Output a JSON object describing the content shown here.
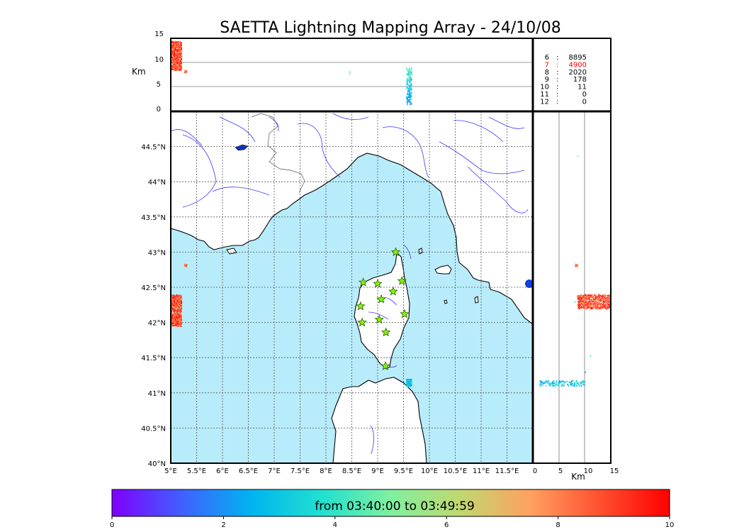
{
  "title": "SAETTA Lightning Mapping Array - 24/10/08",
  "colors": {
    "sea": "#b8ecfa",
    "land": "#ffffff",
    "river": "#3a3aff",
    "border": "#555555",
    "grid": "#555555",
    "station_fill": "#7cfc00",
    "station_stroke": "#2e5a00"
  },
  "top_panel": {
    "ylabel": "Km",
    "yticks": [
      "0",
      "5",
      "10",
      "15"
    ]
  },
  "right_panel": {
    "xlabel": "Km",
    "xticks": [
      "0",
      "5",
      "10",
      "15"
    ]
  },
  "stats": [
    {
      "label": "6",
      "value": "8895",
      "highlight": false
    },
    {
      "label": "7",
      "value": "4900",
      "highlight": true
    },
    {
      "label": "8",
      "value": "2020",
      "highlight": false
    },
    {
      "label": "9",
      "value": "178",
      "highlight": false
    },
    {
      "label": "10",
      "value": "11",
      "highlight": false
    },
    {
      "label": "11",
      "value": "0",
      "highlight": false
    },
    {
      "label": "12",
      "value": "0",
      "highlight": false
    }
  ],
  "map": {
    "lon_ticks": [
      "5°E",
      "5.5°E",
      "6°E",
      "6.5°E",
      "7°E",
      "7.5°E",
      "8°E",
      "8.5°E",
      "9°E",
      "9.5°E",
      "10°E",
      "10.5°E",
      "11°E",
      "11.5°E"
    ],
    "lat_ticks": [
      "40°N",
      "40.5°N",
      "41°N",
      "41.5°N",
      "42°N",
      "42.5°N",
      "43°N",
      "43.5°N",
      "44°N",
      "44.5°N"
    ]
  },
  "colorbar": {
    "label": "from 03:40:00 to 03:49:59",
    "ticks": [
      "0",
      "2",
      "4",
      "6",
      "8",
      "10"
    ],
    "gradient": [
      "#7f00ff",
      "#4060ff",
      "#00b4f0",
      "#20e0d0",
      "#80f0a0",
      "#c0d870",
      "#ffa060",
      "#ff5030",
      "#ff0000"
    ]
  },
  "chart_data": {
    "type": "scatter",
    "title": "SAETTA Lightning Mapping Array - 24/10/08",
    "xlim": [
      5,
      12
    ],
    "ylim": [
      40,
      45
    ],
    "altitude_range_km": [
      0,
      15
    ],
    "color_range": [
      0,
      10
    ],
    "stations": [
      [
        9.35,
        43.0
      ],
      [
        8.72,
        42.57
      ],
      [
        9.0,
        42.55
      ],
      [
        9.47,
        42.59
      ],
      [
        9.3,
        42.44
      ],
      [
        9.07,
        42.33
      ],
      [
        8.67,
        42.23
      ],
      [
        9.52,
        42.12
      ],
      [
        9.03,
        42.04
      ],
      [
        8.7,
        42.0
      ],
      [
        9.16,
        41.86
      ],
      [
        9.15,
        41.38
      ]
    ],
    "clusters": [
      {
        "lon": [
          5.0,
          5.2
        ],
        "lat": [
          41.95,
          42.4
        ],
        "alt_km": [
          8.5,
          14.5
        ],
        "time": [
          7.5,
          10
        ]
      },
      {
        "lon": [
          5.25,
          5.3
        ],
        "lat": [
          42.8,
          42.85
        ],
        "alt_km": [
          8,
          8.5
        ],
        "time": [
          8,
          9
        ]
      },
      {
        "lon": [
          9.55,
          9.65
        ],
        "lat": [
          41.1,
          41.2
        ],
        "alt_km": [
          1.5,
          9
        ],
        "time": [
          0,
          5
        ]
      }
    ]
  }
}
